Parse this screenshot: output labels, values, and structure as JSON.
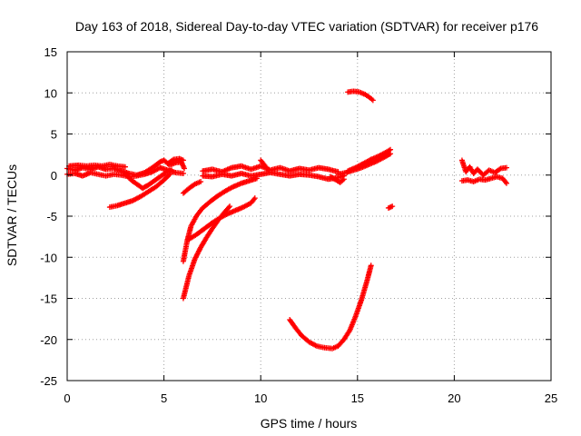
{
  "chart_data": {
    "type": "scatter",
    "title": "Day 163 of 2018, Sidereal Day-to-day VTEC variation (SDTVAR) for receiver p176",
    "xlabel": "GPS time / hours",
    "ylabel": "SDTVAR / TECUs",
    "xlim": [
      0,
      25
    ],
    "ylim": [
      -25,
      15
    ],
    "xticks": [
      0,
      5,
      10,
      15,
      20,
      25
    ],
    "yticks": [
      -25,
      -20,
      -15,
      -10,
      -5,
      0,
      5,
      10,
      15
    ],
    "grid": true,
    "marker": "+",
    "color": "#ff0000",
    "tracks": [
      [
        [
          0.0,
          0.8
        ],
        [
          0.4,
          0.6
        ],
        [
          0.8,
          0.9
        ],
        [
          1.2,
          0.7
        ],
        [
          1.6,
          1.0
        ],
        [
          2.0,
          0.7
        ],
        [
          2.4,
          0.8
        ],
        [
          2.8,
          0.5
        ],
        [
          3.2,
          0.2
        ],
        [
          3.6,
          0.0
        ],
        [
          4.0,
          0.3
        ],
        [
          4.4,
          0.9
        ],
        [
          4.8,
          1.6
        ],
        [
          5.0,
          1.8
        ],
        [
          5.3,
          1.2
        ],
        [
          5.6,
          1.5
        ],
        [
          5.9,
          1.6
        ],
        [
          6.05,
          0.8
        ]
      ],
      [
        [
          0.0,
          0.1
        ],
        [
          0.4,
          0.2
        ],
        [
          0.8,
          -0.1
        ],
        [
          1.2,
          0.3
        ],
        [
          1.6,
          0.1
        ],
        [
          2.0,
          -0.1
        ],
        [
          2.4,
          0.1
        ],
        [
          2.8,
          0.0
        ],
        [
          3.2,
          -0.2
        ],
        [
          3.6,
          -0.1
        ],
        [
          4.0,
          0.1
        ],
        [
          4.4,
          0.4
        ],
        [
          4.8,
          0.9
        ],
        [
          5.2,
          0.6
        ],
        [
          5.6,
          0.3
        ],
        [
          6.0,
          0.2
        ]
      ],
      [
        [
          0.1,
          1.1
        ],
        [
          0.6,
          1.2
        ],
        [
          1.0,
          1.1
        ],
        [
          1.4,
          1.2
        ],
        [
          1.8,
          1.1
        ],
        [
          2.2,
          1.3
        ],
        [
          2.6,
          1.1
        ],
        [
          3.0,
          1.0
        ]
      ],
      [
        [
          3.0,
          0.2
        ],
        [
          3.3,
          -0.6
        ],
        [
          3.6,
          -1.1
        ],
        [
          3.9,
          -1.6
        ],
        [
          4.2,
          -1.2
        ],
        [
          4.5,
          -0.7
        ],
        [
          4.8,
          -0.2
        ],
        [
          5.1,
          0.3
        ],
        [
          5.4,
          0.6
        ]
      ],
      [
        [
          2.2,
          -3.9
        ],
        [
          2.6,
          -3.7
        ],
        [
          3.0,
          -3.4
        ],
        [
          3.4,
          -3.1
        ],
        [
          3.8,
          -2.6
        ],
        [
          4.2,
          -2.0
        ],
        [
          4.6,
          -1.4
        ],
        [
          5.0,
          -0.6
        ],
        [
          5.3,
          0.1
        ]
      ],
      [
        [
          5.2,
          1.4
        ],
        [
          5.5,
          1.9
        ],
        [
          5.8,
          2.0
        ],
        [
          6.0,
          1.8
        ]
      ],
      [
        [
          6.0,
          -10.5
        ],
        [
          6.2,
          -8.0
        ],
        [
          6.4,
          -6.2
        ],
        [
          6.7,
          -4.9
        ],
        [
          7.0,
          -4.0
        ],
        [
          7.4,
          -3.2
        ],
        [
          7.8,
          -2.5
        ],
        [
          8.2,
          -1.9
        ],
        [
          8.6,
          -1.4
        ],
        [
          9.0,
          -1.0
        ],
        [
          9.4,
          -0.7
        ],
        [
          9.8,
          -0.4
        ]
      ],
      [
        [
          6.0,
          -15.0
        ],
        [
          6.3,
          -12.2
        ],
        [
          6.6,
          -10.2
        ],
        [
          6.9,
          -8.8
        ],
        [
          7.2,
          -7.6
        ],
        [
          7.5,
          -6.5
        ],
        [
          7.8,
          -5.5
        ],
        [
          8.1,
          -4.6
        ],
        [
          8.4,
          -3.8
        ]
      ],
      [
        [
          6.3,
          -7.8
        ],
        [
          6.7,
          -7.2
        ],
        [
          7.1,
          -6.5
        ],
        [
          7.5,
          -5.8
        ],
        [
          7.9,
          -5.2
        ],
        [
          8.3,
          -4.7
        ],
        [
          8.7,
          -4.3
        ],
        [
          9.1,
          -3.9
        ],
        [
          9.5,
          -3.4
        ],
        [
          9.7,
          -2.8
        ]
      ],
      [
        [
          6.0,
          -2.2
        ],
        [
          6.3,
          -1.6
        ],
        [
          6.6,
          -1.1
        ],
        [
          6.9,
          -0.8
        ]
      ],
      [
        [
          7.0,
          0.5
        ],
        [
          7.5,
          0.7
        ],
        [
          8.0,
          0.4
        ],
        [
          8.5,
          0.9
        ],
        [
          9.0,
          1.1
        ],
        [
          9.5,
          0.7
        ],
        [
          10.0,
          1.1
        ],
        [
          10.5,
          0.6
        ],
        [
          11.0,
          0.9
        ],
        [
          11.5,
          0.5
        ],
        [
          12.0,
          0.8
        ],
        [
          12.5,
          0.6
        ],
        [
          13.0,
          0.9
        ],
        [
          13.5,
          0.7
        ],
        [
          14.0,
          0.4
        ]
      ],
      [
        [
          7.0,
          -0.1
        ],
        [
          7.5,
          -0.2
        ],
        [
          8.0,
          0.1
        ],
        [
          8.5,
          -0.1
        ],
        [
          9.0,
          0.2
        ],
        [
          9.5,
          -0.1
        ],
        [
          10.0,
          0.1
        ],
        [
          10.5,
          0.3
        ],
        [
          11.0,
          0.1
        ],
        [
          11.5,
          -0.1
        ],
        [
          12.0,
          0.1
        ],
        [
          12.5,
          0.0
        ],
        [
          13.0,
          -0.2
        ],
        [
          13.5,
          -0.5
        ],
        [
          14.0,
          -0.3
        ],
        [
          14.3,
          -0.1
        ]
      ],
      [
        [
          10.0,
          1.8
        ],
        [
          10.2,
          1.2
        ],
        [
          10.4,
          0.6
        ]
      ],
      [
        [
          13.6,
          -0.2
        ],
        [
          13.9,
          -0.6
        ],
        [
          14.1,
          -0.9
        ],
        [
          14.3,
          -0.5
        ]
      ],
      [
        [
          14.0,
          0.1
        ],
        [
          14.4,
          0.3
        ],
        [
          14.8,
          0.6
        ],
        [
          15.2,
          0.9
        ],
        [
          15.6,
          1.3
        ],
        [
          16.0,
          1.7
        ],
        [
          16.4,
          2.2
        ],
        [
          16.7,
          2.6
        ]
      ],
      [
        [
          14.5,
          0.5
        ],
        [
          14.9,
          0.9
        ],
        [
          15.3,
          1.4
        ],
        [
          15.7,
          1.9
        ],
        [
          16.1,
          2.3
        ],
        [
          16.5,
          2.8
        ],
        [
          16.7,
          3.1
        ]
      ],
      [
        [
          11.5,
          -17.6
        ],
        [
          11.8,
          -18.6
        ],
        [
          12.1,
          -19.5
        ],
        [
          12.5,
          -20.3
        ],
        [
          12.9,
          -20.8
        ],
        [
          13.3,
          -21.0
        ],
        [
          13.7,
          -21.1
        ],
        [
          14.0,
          -20.8
        ],
        [
          14.3,
          -20.0
        ],
        [
          14.6,
          -18.9
        ],
        [
          14.9,
          -17.2
        ],
        [
          15.2,
          -15.2
        ],
        [
          15.5,
          -12.8
        ],
        [
          15.7,
          -11.0
        ]
      ],
      [
        [
          14.5,
          10.1
        ],
        [
          14.8,
          10.2
        ],
        [
          15.1,
          10.1
        ],
        [
          15.4,
          9.8
        ],
        [
          15.6,
          9.5
        ],
        [
          15.8,
          9.1
        ]
      ],
      [
        [
          16.6,
          -4.0
        ],
        [
          16.8,
          -3.8
        ]
      ],
      [
        [
          20.4,
          1.8
        ],
        [
          20.6,
          0.4
        ],
        [
          20.8,
          1.0
        ],
        [
          21.0,
          0.2
        ],
        [
          21.2,
          0.7
        ],
        [
          21.5,
          0.0
        ],
        [
          21.8,
          0.6
        ],
        [
          22.1,
          0.3
        ],
        [
          22.4,
          0.8
        ],
        [
          22.7,
          0.9
        ]
      ],
      [
        [
          20.4,
          -0.7
        ],
        [
          20.7,
          -0.6
        ],
        [
          21.0,
          -0.8
        ],
        [
          21.3,
          -0.5
        ],
        [
          21.6,
          -0.6
        ],
        [
          21.9,
          -0.4
        ],
        [
          22.2,
          -0.2
        ],
        [
          22.5,
          -0.4
        ],
        [
          22.7,
          -1.0
        ]
      ]
    ]
  }
}
